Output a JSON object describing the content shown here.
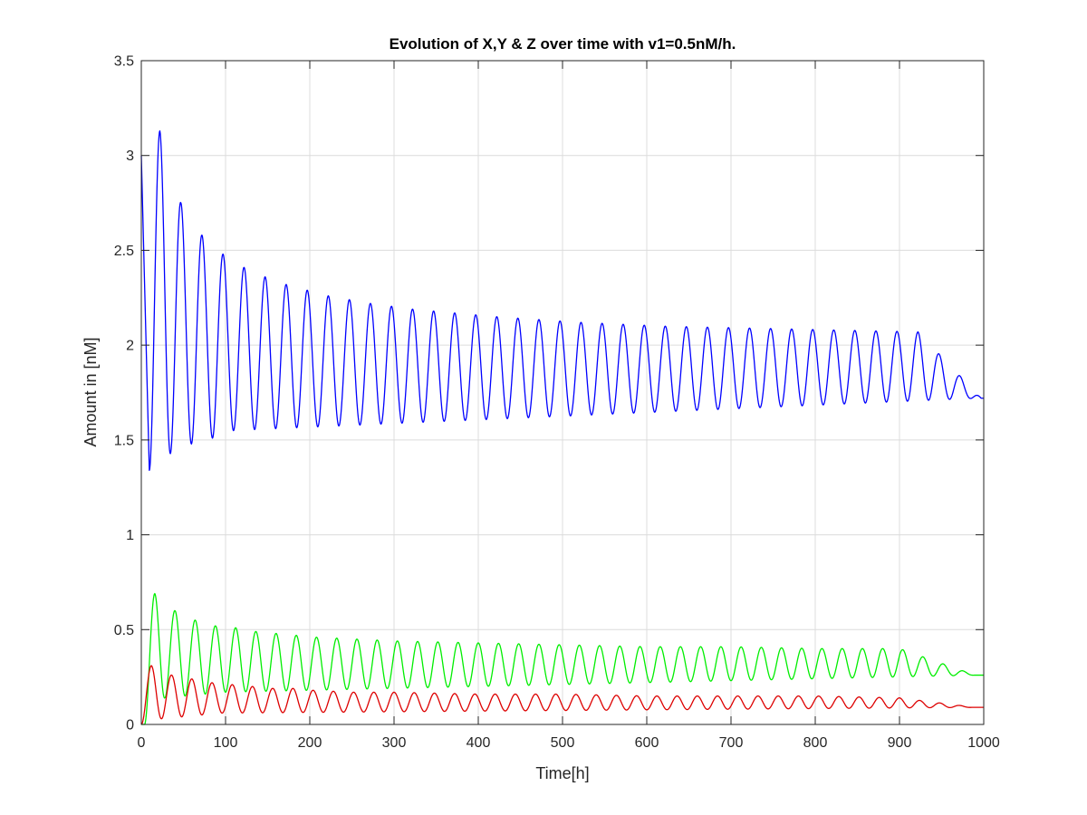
{
  "chart_data": {
    "type": "line",
    "title": "Evolution of X,Y & Z over time with v1=0.5nM/h.",
    "xlabel": "Time[h]",
    "ylabel": "Amount in [nM]",
    "xlim": [
      0,
      1000
    ],
    "ylim": [
      0,
      3.5
    ],
    "xticks": [
      0,
      100,
      200,
      300,
      400,
      500,
      600,
      700,
      800,
      900,
      1000
    ],
    "xtick_labels": [
      "0",
      "100",
      "200",
      "300",
      "400",
      "500",
      "600",
      "700",
      "800",
      "900",
      "1000"
    ],
    "yticks": [
      0,
      0.5,
      1,
      1.5,
      2,
      2.5,
      3,
      3.5
    ],
    "ytick_labels": [
      "0",
      "0.5",
      "1",
      "1.5",
      "2",
      "2.5",
      "3",
      "3.5"
    ],
    "grid": true,
    "legend": "none",
    "series": [
      {
        "color": "#0000ff",
        "x": [
          0,
          10,
          22,
          35,
          47,
          60,
          72,
          85,
          97,
          110,
          122,
          147,
          172,
          197,
          222,
          272,
          322,
          422,
          522,
          622,
          722,
          822,
          922,
          997,
          1000
        ],
        "values": [
          3.0,
          1.34,
          3.13,
          1.43,
          2.75,
          1.48,
          2.58,
          1.51,
          2.48,
          1.55,
          2.41,
          2.36,
          2.32,
          2.29,
          2.26,
          2.22,
          2.19,
          2.15,
          2.12,
          2.1,
          2.09,
          2.08,
          2.07,
          1.72,
          2.0
        ],
        "peaks_troughs_note": ""
      },
      {
        "color": "#00ee00",
        "x": [
          0,
          4,
          16,
          28,
          40,
          52,
          64,
          76,
          88,
          100,
          112,
          136,
          160,
          184,
          208,
          256,
          304,
          400,
          500,
          600,
          700,
          800,
          900,
          990,
          1000
        ],
        "values": [
          0.0,
          0.0,
          0.69,
          0.14,
          0.6,
          0.15,
          0.55,
          0.16,
          0.52,
          0.17,
          0.51,
          0.49,
          0.48,
          0.47,
          0.46,
          0.45,
          0.44,
          0.43,
          0.42,
          0.41,
          0.41,
          0.4,
          0.4,
          0.26,
          0.39
        ],
        "peaks_troughs_note": ""
      },
      {
        "color": "#dd0000",
        "x": [
          0,
          3,
          12,
          24,
          36,
          48,
          60,
          72,
          84,
          96,
          108,
          132,
          156,
          180,
          204,
          252,
          300,
          400,
          500,
          600,
          700,
          800,
          900,
          990,
          1000
        ],
        "values": [
          0.0,
          0.0,
          0.31,
          0.03,
          0.26,
          0.04,
          0.24,
          0.05,
          0.22,
          0.06,
          0.21,
          0.2,
          0.19,
          0.19,
          0.18,
          0.17,
          0.17,
          0.16,
          0.16,
          0.15,
          0.15,
          0.15,
          0.14,
          0.09,
          0.14
        ],
        "peaks_troughs_note": ""
      }
    ]
  }
}
